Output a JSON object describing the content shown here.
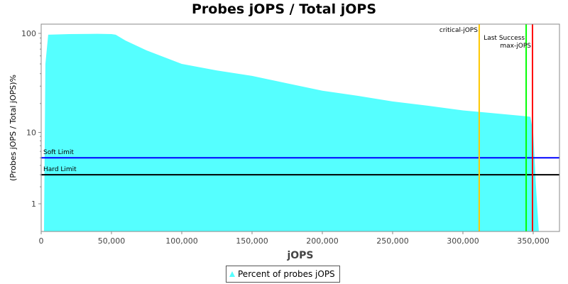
{
  "chart_data": {
    "type": "area",
    "title": "Probes jOPS / Total jOPS",
    "xlabel": "jOPS",
    "ylabel": "(Probes jOPS / Total jOPS)%",
    "xlim": [
      0,
      368700
    ],
    "y_scale": "log",
    "yticks": [
      1,
      10,
      100
    ],
    "xticks": [
      0,
      50000,
      100000,
      150000,
      200000,
      250000,
      300000,
      350000
    ],
    "xtick_labels": [
      "0",
      "50,000",
      "100,000",
      "150,000",
      "200,000",
      "250,000",
      "300,000",
      "350,000"
    ],
    "grid": false,
    "legend_position": "bottom",
    "series": [
      {
        "name": "Percent of probes jOPS",
        "color": "#55ffff",
        "x": [
          2000,
          3000,
          5000,
          20000,
          40000,
          50000,
          53000,
          60000,
          75000,
          100000,
          125000,
          150000,
          175000,
          200000,
          225000,
          250000,
          275000,
          300000,
          320000,
          345000,
          348000,
          350000,
          352000,
          354000,
          368700
        ],
        "y": [
          0,
          50,
          97,
          98.5,
          99,
          98.5,
          97,
          85,
          68,
          50,
          43,
          38,
          32,
          27,
          24,
          21,
          19,
          17,
          16,
          14.8,
          14.6,
          10,
          2,
          0,
          0
        ]
      }
    ],
    "horizontal_lines": [
      {
        "label": "Soft Limit",
        "value": 5,
        "color": "#0000ff"
      },
      {
        "label": "Hard Limit",
        "value": 3,
        "color": "#000000"
      }
    ],
    "vertical_lines": [
      {
        "label": "critical-jOPS",
        "value": 311600,
        "color": "#ffc800"
      },
      {
        "label": "Last Success",
        "value": 345000,
        "color": "#00ff00"
      },
      {
        "label": "max-jOPS",
        "value": 349500,
        "color": "#ff0000"
      }
    ]
  }
}
